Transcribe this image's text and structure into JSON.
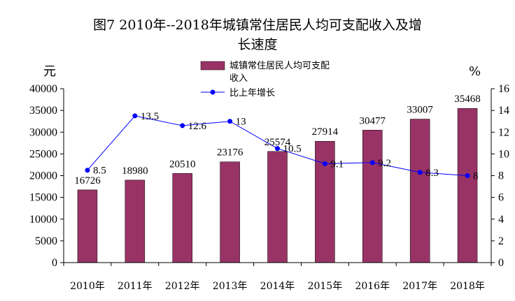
{
  "chart_data": {
    "type": "bar",
    "title": {
      "line1": "图7    2010年--2018年城镇常住居民人均可支配收入及增",
      "line2": "长速度"
    },
    "categories": [
      "2010年",
      "2011年",
      "2012年",
      "2013年",
      "2014年",
      "2015年",
      "2016年",
      "2017年",
      "2018年"
    ],
    "series": [
      {
        "name_line1": "城镇常住居民人均可支配",
        "name_line2": "收入",
        "type": "bar",
        "axis": "left",
        "color": "#993366",
        "values": [
          16726,
          18980,
          20510,
          23176,
          25574,
          27914,
          30477,
          33007,
          35468
        ],
        "labels": [
          "16726",
          "18980",
          "20510",
          "23176",
          "25574",
          "27914",
          "30477",
          "33007",
          "35468"
        ]
      },
      {
        "name": "比上年增长",
        "type": "line",
        "axis": "right",
        "color": "#0000ff",
        "values": [
          8.5,
          13.5,
          12.6,
          13,
          10.5,
          9.1,
          9.2,
          8.3,
          8
        ],
        "labels": [
          "8.5",
          "13.5",
          "12.6",
          "13",
          "10.5",
          "9.1",
          "9.2",
          "8.3",
          "8"
        ]
      }
    ],
    "y_left": {
      "unit": "元",
      "ylim": [
        0,
        40000
      ],
      "ticks": [
        "0",
        "5000",
        "10000",
        "15000",
        "20000",
        "25000",
        "30000",
        "35000",
        "40000"
      ]
    },
    "y_right": {
      "unit": "%",
      "ylim": [
        0,
        16
      ],
      "ticks": [
        "0",
        "2",
        "4",
        "6",
        "8",
        "10",
        "12",
        "14",
        "16"
      ]
    },
    "grid": false,
    "legend_position": "top-center"
  }
}
